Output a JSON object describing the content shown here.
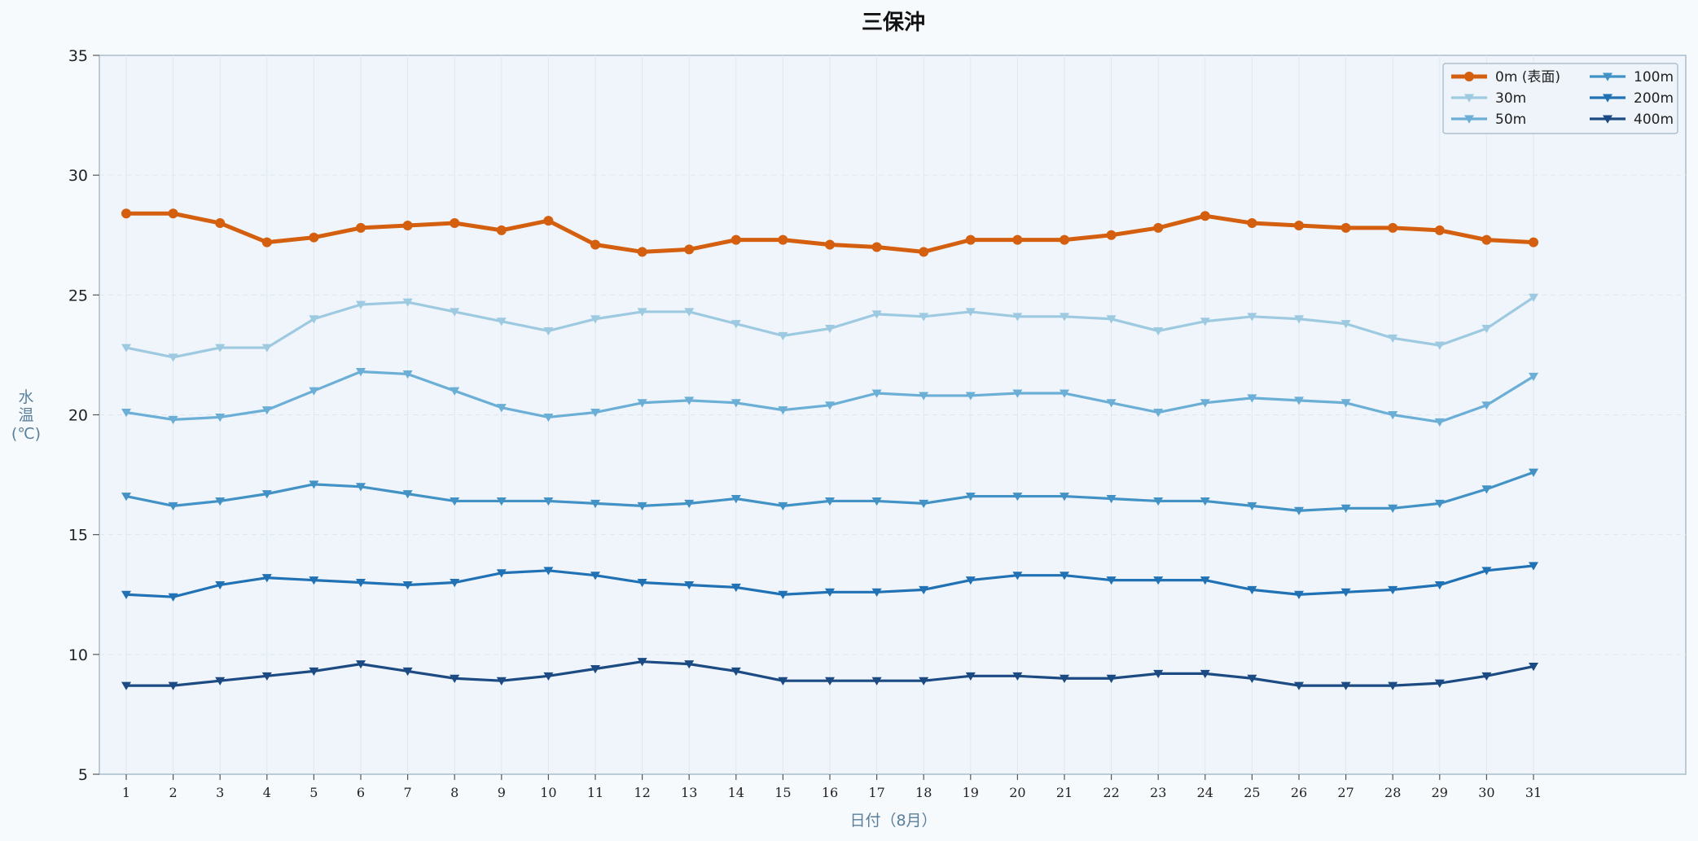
{
  "chart_data": {
    "type": "line",
    "title": "三保沖",
    "xlabel": "日付（8月）",
    "ylabel": [
      "水",
      "温",
      "(℃)"
    ],
    "ylim": [
      5,
      35
    ],
    "yticks": [
      "5",
      "10",
      "15",
      "20",
      "25",
      "30",
      "35"
    ],
    "x": [
      1,
      2,
      3,
      4,
      5,
      6,
      7,
      8,
      9,
      10,
      11,
      12,
      13,
      14,
      15,
      16,
      17,
      18,
      19,
      20,
      21,
      22,
      23,
      24,
      25,
      26,
      27,
      28,
      29,
      30,
      31
    ],
    "xticks": [
      "1",
      "2",
      "3",
      "4",
      "5",
      "6",
      "7",
      "8",
      "9",
      "10",
      "11",
      "12",
      "13",
      "14",
      "15",
      "16",
      "17",
      "18",
      "19",
      "20",
      "21",
      "22",
      "23",
      "24",
      "25",
      "26",
      "27",
      "28",
      "29",
      "30",
      "31"
    ],
    "grid": true,
    "legend_position": "top-right",
    "series": [
      {
        "name": "0m (表面)",
        "color": "#d45f0e",
        "marker": "circle",
        "values": [
          28.4,
          28.4,
          28.0,
          27.2,
          27.4,
          27.8,
          27.9,
          28.0,
          27.7,
          28.1,
          27.1,
          26.8,
          26.9,
          27.3,
          27.3,
          27.1,
          27.0,
          26.8,
          27.3,
          27.3,
          27.3,
          27.5,
          27.8,
          28.3,
          28.0,
          27.9,
          27.8,
          27.8,
          27.7,
          27.3,
          27.2
        ]
      },
      {
        "name": "30m",
        "color": "#9ecae1",
        "marker": "triangle-down",
        "values": [
          22.8,
          22.4,
          22.8,
          22.8,
          24.0,
          24.6,
          24.7,
          24.3,
          23.9,
          23.5,
          24.0,
          24.3,
          24.3,
          23.8,
          23.3,
          23.6,
          24.2,
          24.1,
          24.3,
          24.1,
          24.1,
          24.0,
          23.5,
          23.9,
          24.1,
          24.0,
          23.8,
          23.2,
          22.9,
          23.6,
          24.9
        ]
      },
      {
        "name": "50m",
        "color": "#6baed6",
        "marker": "triangle-down",
        "values": [
          20.1,
          19.8,
          19.9,
          20.2,
          21.0,
          21.8,
          21.7,
          21.0,
          20.3,
          19.9,
          20.1,
          20.5,
          20.6,
          20.5,
          20.2,
          20.4,
          20.9,
          20.8,
          20.8,
          20.9,
          20.9,
          20.5,
          20.1,
          20.5,
          20.7,
          20.6,
          20.5,
          20.0,
          19.7,
          20.4,
          21.6
        ]
      },
      {
        "name": "100m",
        "color": "#4292c6",
        "marker": "triangle-down",
        "values": [
          16.6,
          16.2,
          16.4,
          16.7,
          17.1,
          17.0,
          16.7,
          16.4,
          16.4,
          16.4,
          16.3,
          16.2,
          16.3,
          16.5,
          16.2,
          16.4,
          16.4,
          16.3,
          16.6,
          16.6,
          16.6,
          16.5,
          16.4,
          16.4,
          16.2,
          16.0,
          16.1,
          16.1,
          16.3,
          16.9,
          17.6
        ]
      },
      {
        "name": "200m",
        "color": "#2171b5",
        "marker": "triangle-down",
        "values": [
          12.5,
          12.4,
          12.9,
          13.2,
          13.1,
          13.0,
          12.9,
          13.0,
          13.4,
          13.5,
          13.3,
          13.0,
          12.9,
          12.8,
          12.5,
          12.6,
          12.6,
          12.7,
          13.1,
          13.3,
          13.3,
          13.1,
          13.1,
          13.1,
          12.7,
          12.5,
          12.6,
          12.7,
          12.9,
          13.5,
          13.7
        ]
      },
      {
        "name": "400m",
        "color": "#1c4a82",
        "marker": "triangle-down",
        "values": [
          8.7,
          8.7,
          8.9,
          9.1,
          9.3,
          9.6,
          9.3,
          9.0,
          8.9,
          9.1,
          9.4,
          9.7,
          9.6,
          9.3,
          8.9,
          8.9,
          8.9,
          8.9,
          9.1,
          9.1,
          9.0,
          9.0,
          9.2,
          9.2,
          9.0,
          8.7,
          8.7,
          8.7,
          8.8,
          9.1,
          9.5
        ]
      }
    ]
  }
}
